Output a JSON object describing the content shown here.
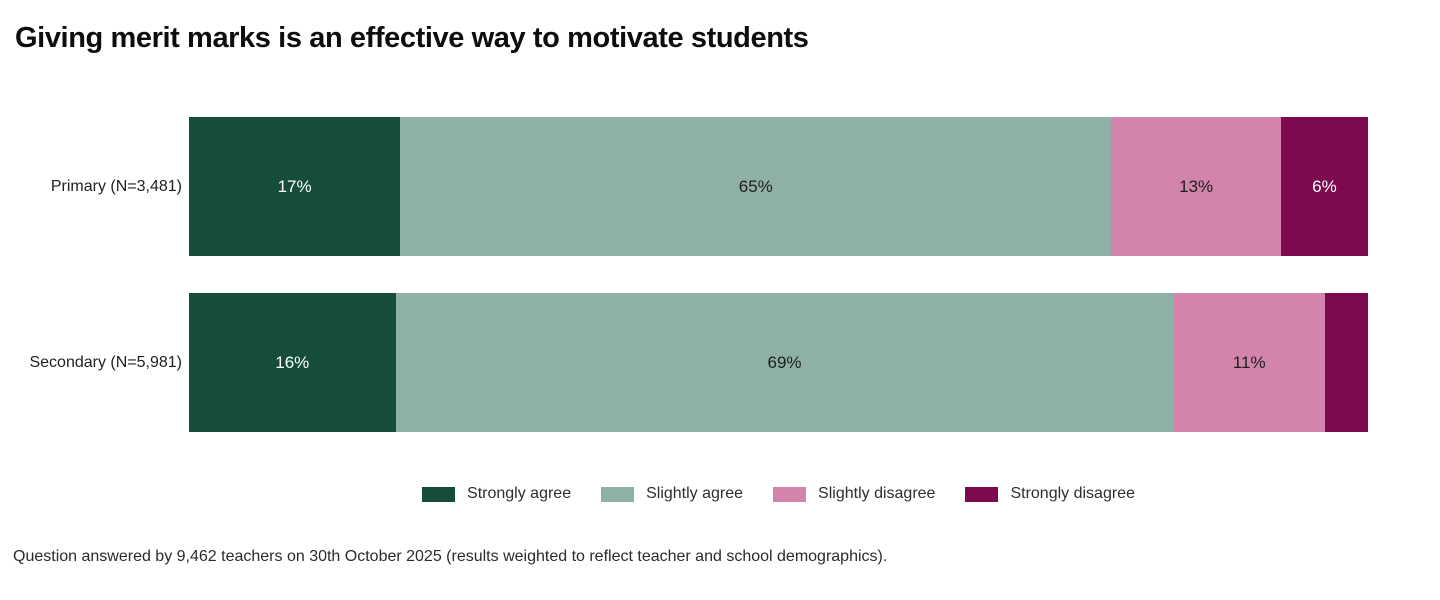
{
  "title": "Giving merit marks is an effective way to motivate students",
  "footer": "Question answered by 9,462 teachers on 30th October 2025 (results weighted to reflect teacher and school demographics).",
  "colors": {
    "strongly_agree": "#154c3b",
    "slightly_agree": "#8fb0a4",
    "slightly_disagree": "#d284ad",
    "strongly_disagree": "#7d0a4e",
    "label_on_dark": "#ffffff",
    "label_on_light": "#1f1f1f"
  },
  "chart_data": {
    "type": "bar",
    "stacked": true,
    "orientation": "horizontal",
    "title": "Giving merit marks is an effective way to motivate students",
    "categories": [
      "Primary (N=3,481)",
      "Secondary (N=5,981)"
    ],
    "series": [
      {
        "key": "strongly-agree",
        "name": "Strongly agree",
        "values": [
          17,
          16
        ],
        "color": "#154c3b",
        "label_color": "#ffffff"
      },
      {
        "key": "slightly-agree",
        "name": "Slightly agree",
        "values": [
          65,
          69
        ],
        "color": "#8fb0a4",
        "label_color": "#1f1f1f"
      },
      {
        "key": "slightly-disagree",
        "name": "Slightly disagree",
        "values": [
          13,
          11
        ],
        "color": "#d284ad",
        "label_color": "#1f1f1f"
      },
      {
        "key": "strongly-disagree",
        "name": "Strongly disagree",
        "values": [
          6,
          4
        ],
        "color": "#7d0a4e",
        "label_color": "#ffffff"
      }
    ],
    "segment_labels": [
      [
        "17%",
        "65%",
        "13%",
        "6%"
      ],
      [
        "16%",
        "69%",
        "11%",
        ""
      ]
    ],
    "xlim": [
      0,
      100
    ],
    "grid": false,
    "legend_position": "bottom-center"
  }
}
